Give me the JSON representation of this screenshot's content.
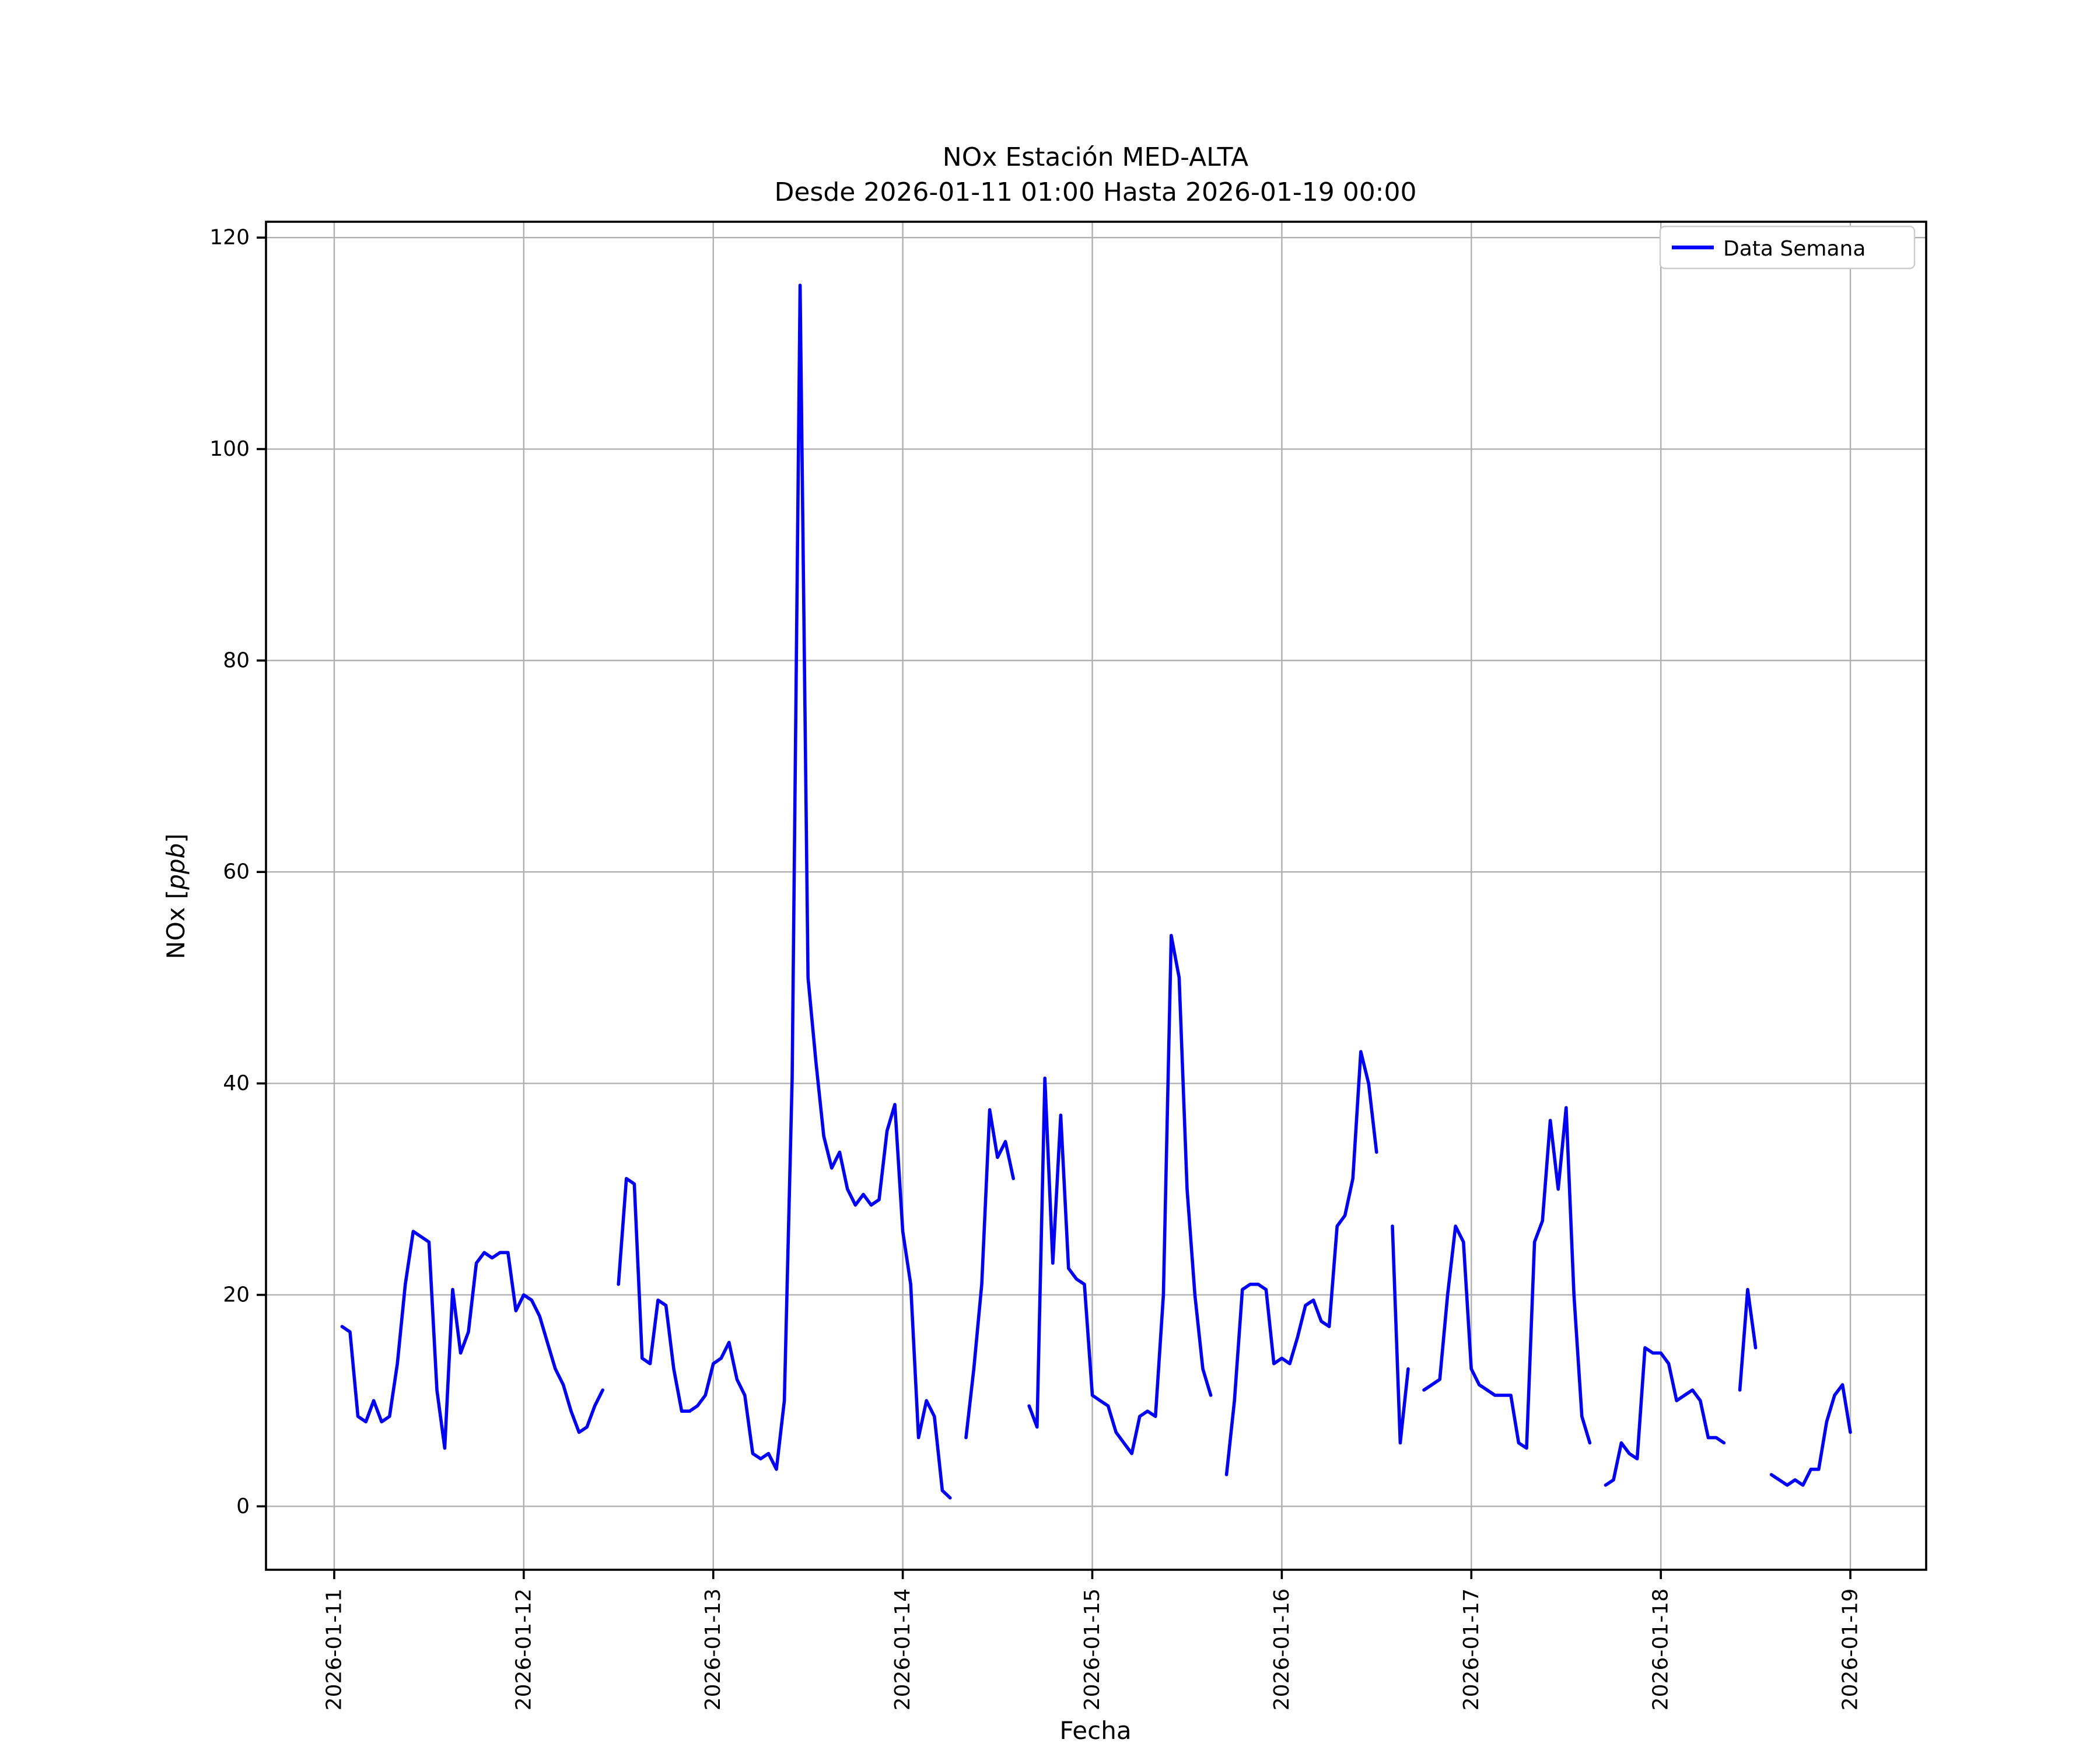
{
  "figure": {
    "background": "#ffffff"
  },
  "chart_data": {
    "type": "line",
    "title": "NOx Estación MED-ALTA",
    "subtitle": "Desde 2026-01-11 01:00 Hasta 2026-01-19 00:00",
    "xlabel": "Fecha",
    "ylabel_prefix": "NOx [",
    "ylabel_italic": "ppb",
    "ylabel_suffix": "]",
    "grid": true,
    "x_start": "2026-01-11 01:00",
    "x_end": "2026-01-19 00:00",
    "x_interval_hours": 1,
    "x_tick_days": [
      11,
      12,
      13,
      14,
      15,
      16,
      17,
      18,
      19
    ],
    "x_tick_labels": [
      "2026-01-11",
      "2026-01-12",
      "2026-01-13",
      "2026-01-14",
      "2026-01-15",
      "2026-01-16",
      "2026-01-17",
      "2026-01-18",
      "2026-01-19"
    ],
    "y_ticks": [
      0,
      20,
      40,
      60,
      80,
      100,
      120
    ],
    "y_tick_labels": [
      "0",
      "20",
      "40",
      "60",
      "80",
      "100",
      "120"
    ],
    "xlim_days": [
      10.64,
      19.4
    ],
    "ylim": [
      -6,
      121.5
    ],
    "grid_color": "#b0b0b0",
    "legend": {
      "position": "upper right",
      "entries": [
        {
          "label": "Data Semana",
          "color": "#0000ff"
        }
      ]
    },
    "series": [
      {
        "name": "Data Semana",
        "color": "#0000ff",
        "values": [
          17,
          16.5,
          8.5,
          8,
          10,
          8,
          8.5,
          13.5,
          21,
          26,
          25.5,
          25,
          11,
          5.5,
          20.5,
          14.5,
          16.5,
          23,
          24,
          23.5,
          24,
          24,
          18.5,
          20,
          19.5,
          18,
          15.5,
          13,
          11.5,
          9,
          7,
          7.5,
          9.5,
          11,
          null,
          21,
          31,
          30.5,
          14,
          13.5,
          19.5,
          19,
          13,
          9,
          9,
          9.5,
          10.5,
          13.5,
          14,
          15.5,
          12,
          10.5,
          5,
          4.5,
          5,
          3.5,
          10,
          40.5,
          115.5,
          50,
          42,
          35,
          32,
          33.5,
          30,
          28.5,
          29.5,
          28.5,
          29,
          35.5,
          38,
          26,
          21,
          6.5,
          10,
          8.5,
          1.5,
          0.8,
          null,
          6.5,
          13,
          21,
          37.5,
          33,
          34.5,
          31,
          null,
          9.5,
          7.5,
          40.5,
          23,
          37,
          22.5,
          21.5,
          21,
          10.5,
          10,
          9.5,
          7,
          6,
          5,
          8.5,
          9,
          8.5,
          20,
          54,
          50,
          30,
          20,
          13,
          10.5,
          null,
          3,
          10,
          20.5,
          21,
          21,
          20.5,
          13.5,
          14,
          13.5,
          16,
          19,
          19.5,
          17.5,
          17,
          26.5,
          27.5,
          31,
          43,
          40,
          33.5,
          null,
          26.5,
          6,
          13,
          null,
          11,
          11.5,
          12,
          20,
          26.5,
          25,
          13,
          11.5,
          11,
          10.5,
          10.5,
          10.5,
          6,
          5.5,
          25,
          27,
          36.5,
          30,
          37.7,
          20,
          8.5,
          6,
          null,
          2,
          2.5,
          6,
          5,
          4.5,
          15,
          14.5,
          14.5,
          13.5,
          10,
          10.5,
          11,
          10,
          6.5,
          6.5,
          6,
          null,
          11,
          20.5,
          15,
          null,
          3,
          2.5,
          2,
          2.5,
          2,
          3.5,
          3.5,
          8,
          10.5,
          11.5,
          7
        ]
      }
    ]
  }
}
